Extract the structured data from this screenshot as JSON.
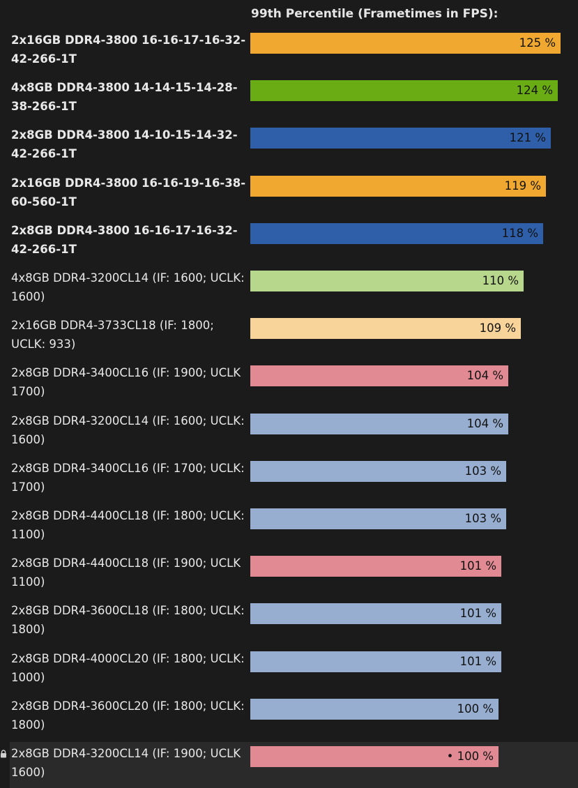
{
  "chart_data": {
    "type": "bar",
    "orientation": "horizontal",
    "title": "99th Percentile (Frametimes in FPS):",
    "xlim": [
      0,
      125
    ],
    "value_suffix": " %",
    "bars": [
      {
        "label": "2x16GB DDR4-3800 16-16-17-16-32-42-266-1T",
        "value": 125,
        "display": "125 %",
        "color": "#f0a830",
        "bold": true
      },
      {
        "label": "4x8GB DDR4-3800 14-14-15-14-28-38-266-1T",
        "value": 124,
        "display": "124 %",
        "color": "#6aac14",
        "bold": true
      },
      {
        "label": "2x8GB DDR4-3800 14-10-15-14-32-42-266-1T",
        "value": 121,
        "display": "121 %",
        "color": "#2e5fa8",
        "bold": true
      },
      {
        "label": "2x16GB DDR4-3800 16-16-19-16-38-60-560-1T",
        "value": 119,
        "display": "119 %",
        "color": "#f0a830",
        "bold": true
      },
      {
        "label": "2x8GB DDR4-3800 16-16-17-16-32-42-266-1T",
        "value": 118,
        "display": "118 %",
        "color": "#2e5fa8",
        "bold": true
      },
      {
        "label": "4x8GB DDR4-3200CL14 (IF: 1600; UCLK: 1600)",
        "value": 110,
        "display": "110 %",
        "color": "#b7d88c",
        "bold": false
      },
      {
        "label": "2x16GB DDR4-3733CL18 (IF: 1800; UCLK: 933)",
        "value": 109,
        "display": "109 %",
        "color": "#f8d49a",
        "bold": false
      },
      {
        "label": "2x8GB DDR4-3400CL16 (IF: 1900; UCLK 1700)",
        "value": 104,
        "display": "104 %",
        "color": "#e28a94",
        "bold": false
      },
      {
        "label": "2x8GB DDR4-3200CL14 (IF: 1600; UCLK: 1600)",
        "value": 104,
        "display": "104 %",
        "color": "#97aed1",
        "bold": false
      },
      {
        "label": "2x8GB DDR4-3400CL16 (IF: 1700; UCLK: 1700)",
        "value": 103,
        "display": "103 %",
        "color": "#97aed1",
        "bold": false
      },
      {
        "label": "2x8GB DDR4-4400CL18 (IF: 1800; UCLK: 1100)",
        "value": 103,
        "display": "103 %",
        "color": "#97aed1",
        "bold": false
      },
      {
        "label": "2x8GB DDR4-4400CL18 (IF: 1900; UCLK 1100)",
        "value": 101,
        "display": "101 %",
        "color": "#e28a94",
        "bold": false
      },
      {
        "label": "2x8GB DDR4-3600CL18 (IF: 1800; UCLK: 1800)",
        "value": 101,
        "display": "101 %",
        "color": "#97aed1",
        "bold": false
      },
      {
        "label": "2x8GB DDR4-4000CL20 (IF: 1800; UCLK: 1000)",
        "value": 101,
        "display": "101 %",
        "color": "#97aed1",
        "bold": false
      },
      {
        "label": "2x8GB DDR4-3600CL20 (IF: 1800; UCLK: 1800)",
        "value": 100,
        "display": "100 %",
        "color": "#97aed1",
        "bold": false
      },
      {
        "label": "2x8GB DDR4-3200CL14 (IF: 1900; UCLK 1600)",
        "value": 100,
        "display": "• 100 %",
        "color": "#e28a94",
        "bold": false,
        "highlight": true,
        "icon": "lock-icon"
      }
    ]
  }
}
